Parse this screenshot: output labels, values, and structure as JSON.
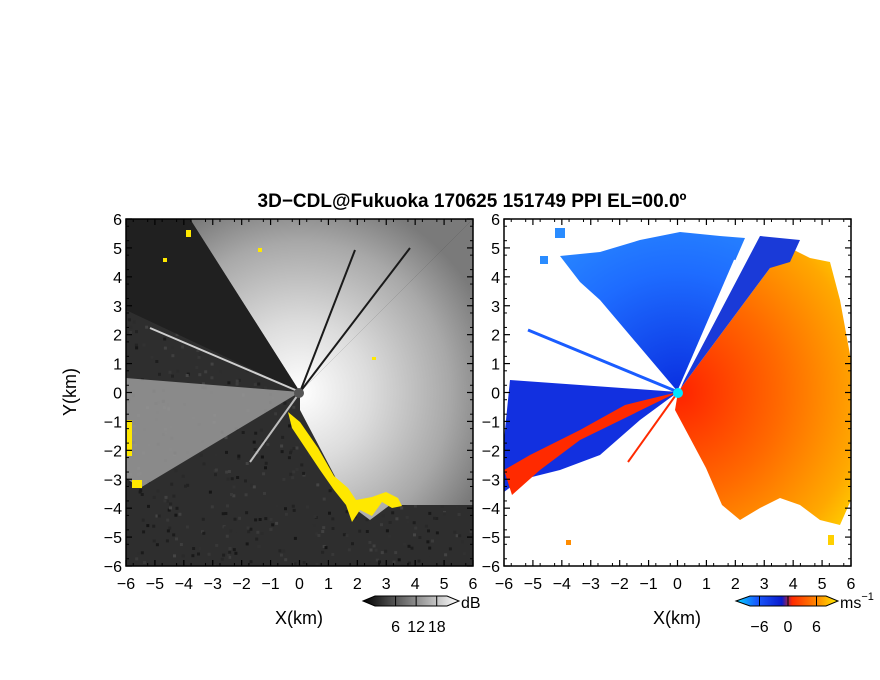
{
  "title": "3D−CDL@Fukuoka 170625 151749 PPI EL=00.0º",
  "chart_data": [
    {
      "type": "heatmap",
      "name": "snr",
      "xlabel": "X(km)",
      "ylabel": "Y(km)",
      "xlim": [
        -6,
        6
      ],
      "ylim": [
        -6,
        6
      ],
      "xticks": [
        "−6",
        "−5",
        "−4",
        "−3",
        "−2",
        "−1",
        "0",
        "1",
        "2",
        "3",
        "4",
        "5",
        "6"
      ],
      "yticks": [
        "6",
        "5",
        "4",
        "3",
        "2",
        "1",
        "0",
        "−1",
        "−2",
        "−3",
        "−4",
        "−5",
        "−6"
      ],
      "colorbar": {
        "unit": "dB",
        "ticks": [
          "6",
          "12",
          "18"
        ],
        "range": [
          0,
          21
        ],
        "colors": [
          "#000000",
          "#ffffff"
        ]
      },
      "highlight_color": "#ffe800"
    },
    {
      "type": "heatmap",
      "name": "radial-velocity",
      "xlabel": "X(km)",
      "ylabel": "",
      "xlim": [
        -6,
        6
      ],
      "ylim": [
        -6,
        6
      ],
      "xticks": [
        "−6",
        "−5",
        "−4",
        "−3",
        "−2",
        "−1",
        "0",
        "1",
        "2",
        "3",
        "4",
        "5",
        "6"
      ],
      "yticks": [
        "6",
        "5",
        "4",
        "3",
        "2",
        "1",
        "0",
        "−1",
        "−2",
        "−3",
        "−4",
        "−5",
        "−6"
      ],
      "colorbar": {
        "unit": "ms",
        "unit_sup": "−1",
        "ticks": [
          "−6",
          "0",
          "6"
        ],
        "range": [
          -8,
          8
        ],
        "colors": [
          "#00d8ff",
          "#1a5cff",
          "#0a1acc",
          "#ff2a00",
          "#ff8c00",
          "#ffee00"
        ]
      },
      "center_marker_color": "#00e5ff"
    }
  ]
}
